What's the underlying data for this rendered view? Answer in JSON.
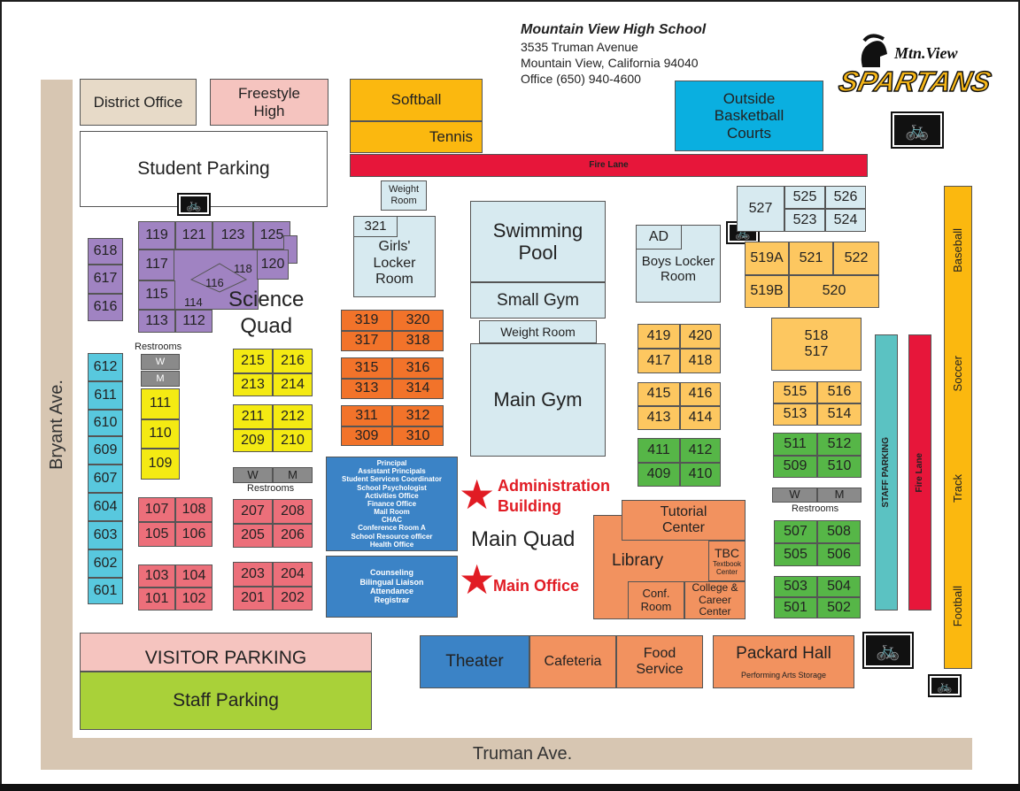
{
  "school": {
    "name": "Mountain View High School",
    "address1": "3535 Truman Avenue",
    "address2": "Mountain View, California 94040",
    "phone": "Office (650) 940-4600",
    "logo_top": "Mtn.View",
    "logo_main": "SPARTANS"
  },
  "roads": {
    "bryant": "Bryant Ave.",
    "truman": "Truman Ave."
  },
  "top_row": {
    "district_office": "District Office",
    "freestyle": "Freestyle High",
    "softball": "Softball",
    "tennis": "Tennis",
    "outside_basketball": "Outside Basketball Courts",
    "student_parking": "Student Parking",
    "fire_lane": "Fire Lane"
  },
  "science": {
    "rooms_618": [
      "618",
      "617",
      "616"
    ],
    "row1": [
      "119",
      "121",
      "123",
      "125"
    ],
    "r117": "117",
    "r120": "120",
    "r118": "118",
    "r116": "116",
    "r115": "115",
    "r114": "114",
    "r113": "113",
    "r112": "112",
    "quad_label1": "Science",
    "quad_label2": "Quad"
  },
  "restrooms": {
    "label": "Restrooms",
    "w": "W",
    "m": "M"
  },
  "rooms_100": {
    "col111": [
      "111",
      "110",
      "109"
    ],
    "r107": "107",
    "r108": "108",
    "r105": "105",
    "r106": "106",
    "r103": "103",
    "r104": "104",
    "r101": "101",
    "r102": "102"
  },
  "rooms_600": [
    "612",
    "611",
    "610",
    "609",
    "607",
    "604",
    "603",
    "602",
    "601"
  ],
  "rooms_200": {
    "a": [
      "215",
      "216",
      "213",
      "214"
    ],
    "b": [
      "211",
      "212",
      "209",
      "210"
    ],
    "c": [
      "207",
      "208",
      "205",
      "206"
    ],
    "d": [
      "203",
      "204",
      "201",
      "202"
    ]
  },
  "rooms_300": {
    "a": [
      "319",
      "320",
      "317",
      "318"
    ],
    "b": [
      "315",
      "316",
      "313",
      "314"
    ],
    "c": [
      "311",
      "312",
      "309",
      "310"
    ],
    "weight_room": "Weight Room",
    "r321": "321",
    "girls_locker": "Girls' Locker Room"
  },
  "gym": {
    "pool": "Swimming Pool",
    "small_gym": "Small Gym",
    "weight_room2": "Weight Room",
    "main_gym": "Main Gym"
  },
  "rooms_400": {
    "ad": "AD",
    "boys_locker": "Boys Locker Room",
    "a": [
      "419",
      "420",
      "417",
      "418"
    ],
    "b": [
      "415",
      "416",
      "413",
      "414"
    ],
    "c": [
      "411",
      "412",
      "409",
      "410"
    ]
  },
  "rooms_500": {
    "r527": "527",
    "r525": "525",
    "r526": "526",
    "r523": "523",
    "r524": "524",
    "r519a": "519A",
    "r521": "521",
    "r522": "522",
    "r519b": "519B",
    "r520": "520",
    "r518": "518",
    "r517": "517",
    "a": [
      "515",
      "516",
      "513",
      "514"
    ],
    "b": [
      "511",
      "512",
      "509",
      "510"
    ],
    "c": [
      "507",
      "508",
      "505",
      "506"
    ],
    "d": [
      "503",
      "504",
      "501",
      "502"
    ]
  },
  "admin": {
    "lines": [
      "Principal",
      "Assistant Principals",
      "Student Services Coordinator",
      "School Psychologist",
      "Activities Office",
      "Finance Office",
      "Mail Room",
      "CHAC",
      "Conference Room A",
      "School Resource officer",
      "Health Office"
    ],
    "label1": "Administration",
    "label2": "Building",
    "main_office_lines": [
      "Counseling",
      "Bilingual Liaison",
      "Attendance",
      "Registrar"
    ],
    "main_office_label": "Main Office",
    "main_quad": "Main Quad"
  },
  "library": {
    "tutorial": "Tutorial Center",
    "library": "Library",
    "tbc": "TBC",
    "tbc_sub": "Textbook Center",
    "conf": "Conf. Room",
    "college": "College & Career Center"
  },
  "south": {
    "visitor_parking": "VISITOR PARKING",
    "staff_parking": "Staff Parking",
    "theater": "Theater",
    "cafeteria": "Cafeteria",
    "food_service": "Food Service",
    "packard": "Packard Hall",
    "packard_sub": "Performing Arts Storage"
  },
  "east": {
    "staff_parking_v": "STAFF PARKING",
    "fire_lane_v": "Fire Lane",
    "baseball": "Baseball",
    "soccer": "Soccer",
    "track": "Track",
    "football": "Football"
  },
  "icons": [
    "bicycle-icon",
    "star-icon",
    "spartan-helmet-icon"
  ]
}
